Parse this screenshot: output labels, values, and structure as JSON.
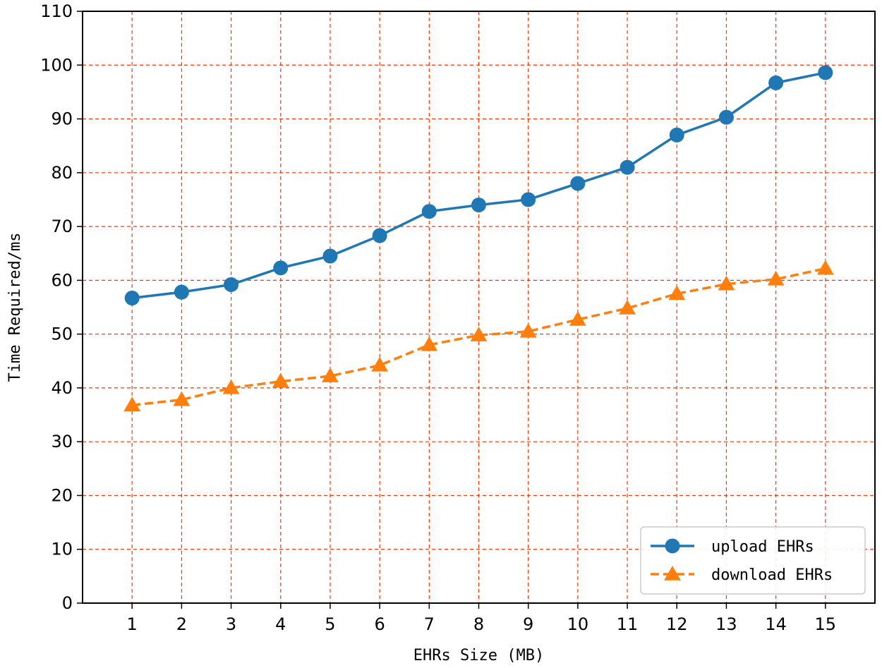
{
  "chart_data": {
    "type": "line",
    "title": "",
    "xlabel": "EHRs Size (MB)",
    "ylabel": "Time Required/ms",
    "x": [
      1,
      2,
      3,
      4,
      5,
      6,
      7,
      8,
      9,
      10,
      11,
      12,
      13,
      14,
      15
    ],
    "x_ticks": [
      "1",
      "2",
      "3",
      "4",
      "5",
      "6",
      "7",
      "8",
      "9",
      "10",
      "11",
      "12",
      "13",
      "14",
      "15"
    ],
    "y_ticks": [
      "0",
      "10",
      "20",
      "30",
      "40",
      "50",
      "60",
      "70",
      "80",
      "90",
      "100",
      "110"
    ],
    "xlim": [
      0,
      16
    ],
    "ylim": [
      0,
      110
    ],
    "grid": true,
    "grid_color": "#ff3300",
    "legend_position": "lower-right",
    "series": [
      {
        "name": "upload EHRs",
        "color": "#1f77b4",
        "marker": "circle",
        "line_style": "solid",
        "values": [
          56.7,
          57.8,
          59.2,
          62.3,
          64.5,
          68.3,
          72.8,
          74.0,
          75.0,
          78.0,
          81.0,
          87.0,
          90.3,
          96.7,
          98.6
        ]
      },
      {
        "name": "download EHRs",
        "color": "#ff7f0e",
        "marker": "triangle",
        "line_style": "dashed",
        "values": [
          36.8,
          37.8,
          40.0,
          41.2,
          42.2,
          44.2,
          48.0,
          49.8,
          50.5,
          52.7,
          54.8,
          57.5,
          59.3,
          60.2,
          62.2
        ]
      }
    ]
  }
}
